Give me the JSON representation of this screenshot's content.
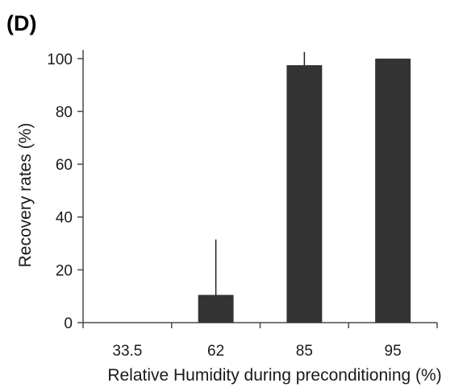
{
  "panel_label": "(D)",
  "chart_data": {
    "type": "bar",
    "categories": [
      "33.5",
      "62",
      "85",
      "95"
    ],
    "values": [
      0,
      10.5,
      97.5,
      100
    ],
    "error_upper": [
      0,
      21,
      5,
      0
    ],
    "xlabel": "Relative Humidity during preconditioning (%)",
    "ylabel": "Recovery rates (%)",
    "ylim": [
      0,
      110
    ],
    "yticks": [
      "0",
      "20",
      "40",
      "60",
      "80",
      "100"
    ],
    "grid": false,
    "legend": "none",
    "bar_color": "#333333"
  }
}
